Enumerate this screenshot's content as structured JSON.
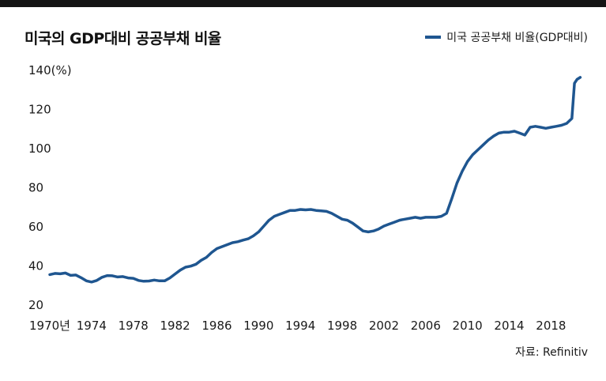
{
  "header": {
    "title": "미국의 GDP대비 공공부채 비율",
    "legend_label": "미국 공공부채 비율(GDP대비)"
  },
  "footer": {
    "source": "자료: Refinitiv"
  },
  "colors": {
    "line": "#1f5690",
    "top_rule": "#141414"
  },
  "chart_data": {
    "type": "line",
    "title": "미국의 GDP대비 공공부채 비율",
    "ylabel": "(%)",
    "xlim": [
      1970,
      2021.3
    ],
    "ylim": [
      20,
      140
    ],
    "y_ticks": [
      20,
      40,
      60,
      80,
      100,
      120,
      140
    ],
    "y_tick_labels": [
      "20",
      "40",
      "60",
      "80",
      "100",
      "120",
      "140(%)"
    ],
    "x_ticks": [
      1970,
      1974,
      1978,
      1982,
      1986,
      1990,
      1994,
      1998,
      2002,
      2006,
      2010,
      2014,
      2018
    ],
    "x_tick_labels": [
      "1970년",
      "1974",
      "1978",
      "1982",
      "1986",
      "1990",
      "1994",
      "1998",
      "2002",
      "2006",
      "2010",
      "2014",
      "2018"
    ],
    "grid": false,
    "legend": "top-right",
    "series": [
      {
        "name": "미국 공공부채 비율(GDP대비)",
        "x": [
          1970.0,
          1970.5,
          1971.0,
          1971.5,
          1972.0,
          1972.5,
          1973.0,
          1973.5,
          1974.0,
          1974.5,
          1975.0,
          1975.5,
          1976.0,
          1976.5,
          1977.0,
          1977.5,
          1978.0,
          1978.5,
          1979.0,
          1979.5,
          1980.0,
          1980.5,
          1981.0,
          1981.5,
          1982.0,
          1982.5,
          1983.0,
          1983.5,
          1984.0,
          1984.5,
          1985.0,
          1985.5,
          1986.0,
          1986.5,
          1987.0,
          1987.5,
          1988.0,
          1988.5,
          1989.0,
          1989.5,
          1990.0,
          1990.5,
          1991.0,
          1991.5,
          1992.0,
          1992.5,
          1993.0,
          1993.5,
          1994.0,
          1994.5,
          1995.0,
          1995.5,
          1996.0,
          1996.5,
          1997.0,
          1997.5,
          1998.0,
          1998.5,
          1999.0,
          1999.5,
          2000.0,
          2000.5,
          2001.0,
          2001.5,
          2002.0,
          2002.5,
          2003.0,
          2003.5,
          2004.0,
          2004.5,
          2005.0,
          2005.5,
          2006.0,
          2006.5,
          2007.0,
          2007.5,
          2008.0,
          2008.5,
          2009.0,
          2009.5,
          2010.0,
          2010.5,
          2011.0,
          2011.5,
          2012.0,
          2012.5,
          2013.0,
          2013.5,
          2014.0,
          2014.5,
          2015.0,
          2015.5,
          2016.0,
          2016.5,
          2017.0,
          2017.5,
          2018.0,
          2018.5,
          2019.0,
          2019.5,
          2020.0,
          2020.25,
          2020.5,
          2020.8
        ],
        "values": [
          35.2,
          35.8,
          35.6,
          36.0,
          34.8,
          35.0,
          33.6,
          32.0,
          31.4,
          32.2,
          33.8,
          34.7,
          34.6,
          34.0,
          34.2,
          33.5,
          33.3,
          32.2,
          31.8,
          31.9,
          32.4,
          32.0,
          32.0,
          33.5,
          35.5,
          37.5,
          39.0,
          39.5,
          40.5,
          42.5,
          44.0,
          46.5,
          48.5,
          49.5,
          50.5,
          51.5,
          52.0,
          52.8,
          53.5,
          55.0,
          57.0,
          60.0,
          63.0,
          65.0,
          66.0,
          67.0,
          68.0,
          68.0,
          68.5,
          68.3,
          68.5,
          68.0,
          67.8,
          67.5,
          66.5,
          65.0,
          63.5,
          63.0,
          61.5,
          59.5,
          57.5,
          57.0,
          57.5,
          58.5,
          60.0,
          61.0,
          62.0,
          63.0,
          63.5,
          64.0,
          64.5,
          64.0,
          64.5,
          64.5,
          64.5,
          65.0,
          66.5,
          74.0,
          82.0,
          88.0,
          93.0,
          96.5,
          99.0,
          101.5,
          104.0,
          106.0,
          107.5,
          108.0,
          108.0,
          108.5,
          107.5,
          106.5,
          110.5,
          111.0,
          110.5,
          110.0,
          110.5,
          111.0,
          111.5,
          112.5,
          115.0,
          133.0,
          135.0,
          136.0
        ]
      }
    ]
  }
}
